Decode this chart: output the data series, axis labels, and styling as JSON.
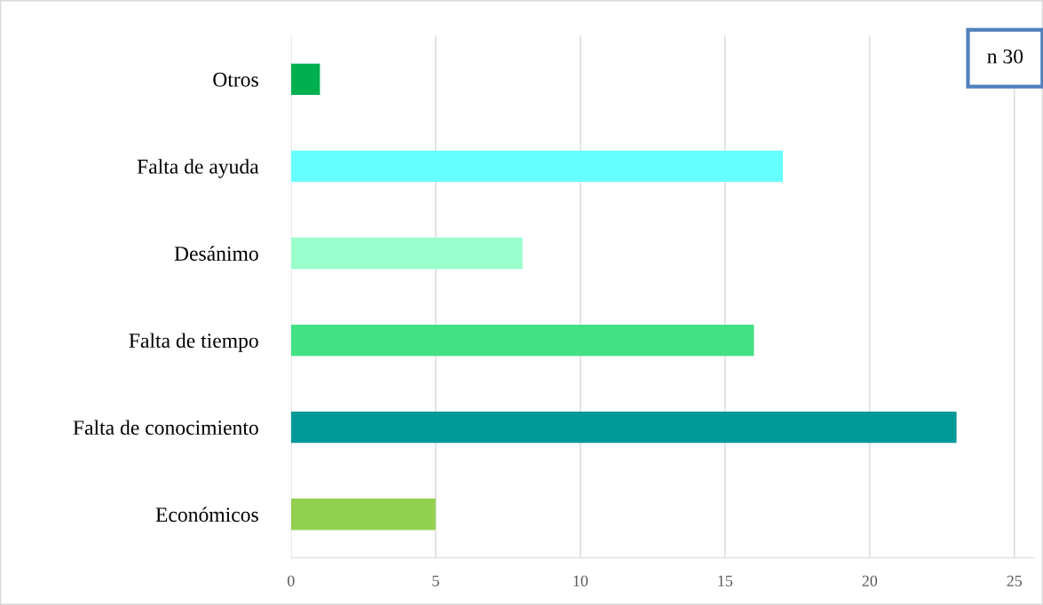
{
  "chart_data": {
    "type": "bar",
    "orientation": "horizontal",
    "categories": [
      "Otros",
      "Falta de ayuda",
      "Desánimo",
      "Falta de tiempo",
      "Falta de conocimiento",
      "Económicos"
    ],
    "values": [
      1,
      17,
      8,
      16,
      23,
      5
    ],
    "colors": [
      "#00b050",
      "#66ffff",
      "#99ffcc",
      "#44e084",
      "#009999",
      "#92d050"
    ],
    "xlim": [
      0,
      25.7
    ],
    "xticks": [
      0,
      5,
      10,
      15,
      20,
      25
    ],
    "grid": "x",
    "annotations": [
      "n 30"
    ]
  }
}
